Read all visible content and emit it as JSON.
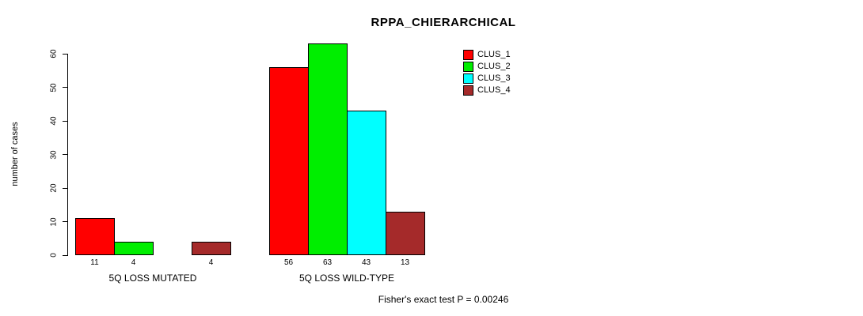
{
  "chart_data": {
    "type": "bar",
    "title": "RPPA_CHIERARCHICAL",
    "xlabel": "",
    "ylabel": "number of cases",
    "categories": [
      "5Q LOSS MUTATED",
      "5Q LOSS WILD-TYPE"
    ],
    "series": [
      {
        "name": "CLUS_1",
        "color": "#ff0000",
        "values": [
          11,
          56
        ]
      },
      {
        "name": "CLUS_2",
        "color": "#00ee00",
        "values": [
          4,
          63
        ]
      },
      {
        "name": "CLUS_3",
        "color": "#00ffff",
        "values": [
          0,
          43
        ]
      },
      {
        "name": "CLUS_4",
        "color": "#a52a2a",
        "values": [
          4,
          13
        ]
      }
    ],
    "value_labels": [
      [
        "11",
        "4",
        "",
        "4"
      ],
      [
        "56",
        "63",
        "43",
        "13"
      ]
    ],
    "y_ticks": [
      0,
      10,
      20,
      30,
      40,
      50,
      60
    ],
    "ylim": [
      0,
      63
    ],
    "grid": false,
    "legend_position": "top-right",
    "legend_entries": [
      "CLUS_1",
      "CLUS_2",
      "CLUS_3",
      "CLUS_4"
    ],
    "footnote": "Fisher's exact test P = 0.00246"
  }
}
